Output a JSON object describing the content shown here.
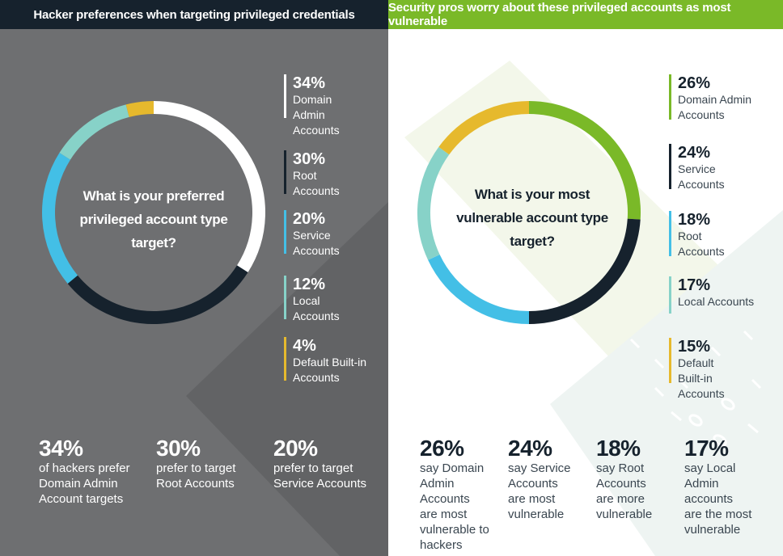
{
  "colors": {
    "navy": "#16222d",
    "white": "#ffffff",
    "blue": "#43bfe6",
    "teal": "#87d2c8",
    "yellow": "#e6b92d",
    "green": "#7ab928",
    "left_background": "#6e6f71"
  },
  "left": {
    "header": "Hacker preferences when targeting privileged credentials",
    "center_label": "What is your preferred privileged account type target?",
    "stats": [
      {
        "pct": "34%",
        "text": "of hackers prefer\nDomain Admin\nAccount targets"
      },
      {
        "pct": "30%",
        "text": "prefer to target\nRoot Accounts"
      },
      {
        "pct": "20%",
        "text": "prefer to target\nService Accounts"
      }
    ]
  },
  "right": {
    "header": "Security pros worry about these privileged accounts as most vulnerable",
    "center_label": "What is your most vulnerable account type target?",
    "stats": [
      {
        "pct": "26%",
        "text": "say Domain\nAdmin\nAccounts\nare most\nvulnerable to\nhackers"
      },
      {
        "pct": "24%",
        "text": "say Service\nAccounts\nare most\nvulnerable"
      },
      {
        "pct": "18%",
        "text": "say Root\nAccounts\nare more\nvulnerable"
      },
      {
        "pct": "17%",
        "text": "say Local\nAdmin\naccounts\nare the most\nvulnerable"
      }
    ]
  },
  "chart_data": [
    {
      "type": "pie",
      "title": "What is your preferred privileged account type target?",
      "categories": [
        "Domain Admin Accounts",
        "Root Accounts",
        "Service Accounts",
        "Local Accounts",
        "Default Built-in Accounts"
      ],
      "values": [
        34,
        30,
        20,
        12,
        4
      ],
      "unit": "%",
      "colors": [
        "#ffffff",
        "#16222d",
        "#43bfe6",
        "#87d2c8",
        "#e6b92d"
      ],
      "legend": [
        {
          "pct": "34%",
          "label": "Domain\nAdmin\nAccounts"
        },
        {
          "pct": "30%",
          "label": "Root\nAccounts"
        },
        {
          "pct": "20%",
          "label": "Service\nAccounts"
        },
        {
          "pct": "12%",
          "label": "Local\nAccounts"
        },
        {
          "pct": "4%",
          "label": "Default Built-in\nAccounts"
        }
      ],
      "legend_position": "right"
    },
    {
      "type": "pie",
      "title": "What is your most vulnerable account type target?",
      "categories": [
        "Domain Admin Accounts",
        "Service Accounts",
        "Root Accounts",
        "Local Accounts",
        "Default Built-in Accounts"
      ],
      "values": [
        26,
        24,
        18,
        17,
        15
      ],
      "unit": "%",
      "colors": [
        "#7ab928",
        "#16222d",
        "#43bfe6",
        "#87d2c8",
        "#e6b92d"
      ],
      "legend": [
        {
          "pct": "26%",
          "label": "Domain Admin\nAccounts"
        },
        {
          "pct": "24%",
          "label": "Service\nAccounts"
        },
        {
          "pct": "18%",
          "label": "Root\nAccounts"
        },
        {
          "pct": "17%",
          "label": "Local Accounts"
        },
        {
          "pct": "15%",
          "label": "Default\nBuilt-in\nAccounts"
        }
      ],
      "legend_position": "right"
    }
  ]
}
